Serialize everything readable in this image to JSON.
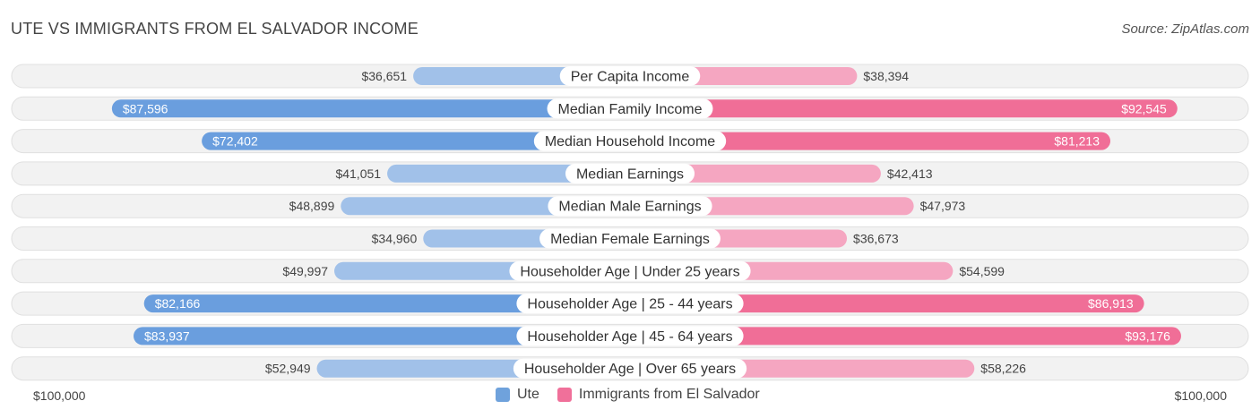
{
  "title": "UTE VS IMMIGRANTS FROM EL SALVADOR INCOME",
  "source": "Source: ZipAtlas.com",
  "axis": {
    "left_label": "$100,000",
    "right_label": "$100,000"
  },
  "legend": [
    {
      "name": "Ute",
      "color": "#6fa2dc"
    },
    {
      "name": "Immigrants from El Salvador",
      "color": "#f0709a"
    }
  ],
  "colors": {
    "left_strong": "#6a9ede",
    "left_light": "#a1c1e9",
    "right_strong": "#f06e97",
    "right_light": "#f5a6c1",
    "row_bg": "#f2f2f2",
    "row_border": "#e0e0e0"
  },
  "chart_data": {
    "type": "bar",
    "orientation": "diverging-horizontal",
    "xlim": [
      0,
      100000
    ],
    "categories": [
      "Per Capita Income",
      "Median Family Income",
      "Median Household Income",
      "Median Earnings",
      "Median Male Earnings",
      "Median Female Earnings",
      "Householder Age | Under 25 years",
      "Householder Age | 25 - 44 years",
      "Householder Age | 45 - 64 years",
      "Householder Age | Over 65 years"
    ],
    "series": [
      {
        "name": "Ute",
        "values": [
          36651,
          87596,
          72402,
          41051,
          48899,
          34960,
          49997,
          82166,
          83937,
          52949
        ],
        "labels": [
          "$36,651",
          "$87,596",
          "$72,402",
          "$41,051",
          "$48,899",
          "$34,960",
          "$49,997",
          "$82,166",
          "$83,937",
          "$52,949"
        ]
      },
      {
        "name": "Immigrants from El Salvador",
        "values": [
          38394,
          92545,
          81213,
          42413,
          47973,
          36673,
          54599,
          86913,
          93176,
          58226
        ],
        "labels": [
          "$38,394",
          "$92,545",
          "$81,213",
          "$42,413",
          "$47,973",
          "$36,673",
          "$54,599",
          "$86,913",
          "$93,176",
          "$58,226"
        ]
      }
    ]
  }
}
